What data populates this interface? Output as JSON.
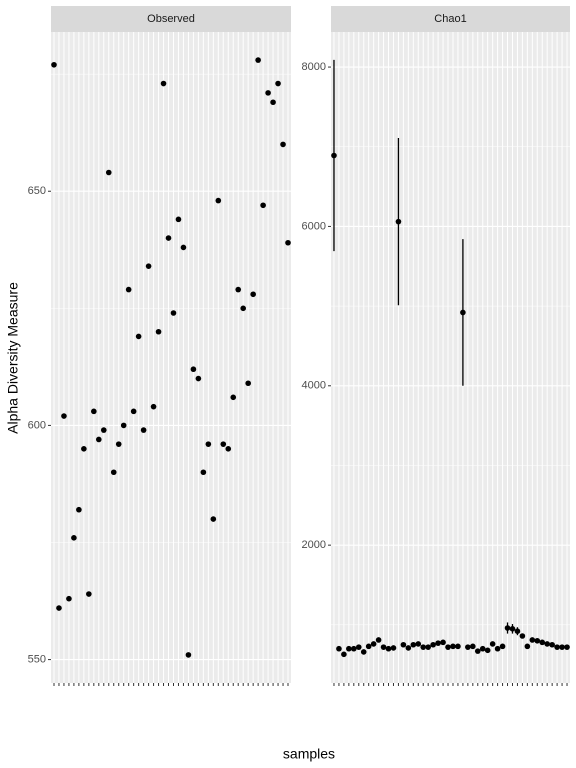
{
  "chart_data": [
    {
      "type": "scatter",
      "title": "Observed",
      "xlabel": "samples",
      "ylabel": "Alpha Diversity Measure",
      "categories": [
        null,
        null,
        null,
        null,
        null,
        null,
        null,
        null,
        null,
        null,
        null,
        null,
        null,
        null,
        null,
        null,
        null,
        null,
        null,
        null,
        null,
        null,
        null,
        null,
        null,
        null,
        null,
        null,
        null,
        null,
        null,
        null,
        null,
        null,
        null,
        null,
        null,
        null,
        null,
        null,
        null,
        null,
        null,
        null,
        null,
        null,
        null,
        null
      ],
      "values": [
        677,
        561,
        602,
        563,
        576,
        582,
        595,
        564,
        603,
        597,
        599,
        654,
        590,
        596,
        600,
        629,
        603,
        619,
        599,
        634,
        604,
        620,
        673,
        640,
        624,
        644,
        638,
        551,
        612,
        610,
        590,
        596,
        580,
        648,
        596,
        595,
        606,
        629,
        625,
        609,
        628,
        678,
        647,
        671,
        669,
        673,
        660,
        639
      ],
      "color": "#000000",
      "ylim": [
        545,
        684
      ],
      "yticks": [
        550,
        600,
        650
      ],
      "grid": true
    },
    {
      "type": "scatter",
      "title": "Chao1",
      "categories": [
        null,
        null,
        null,
        null,
        null,
        null,
        null,
        null,
        null,
        null,
        null,
        null,
        null,
        null,
        null,
        null,
        null,
        null,
        null,
        null,
        null,
        null,
        null,
        null,
        null,
        null,
        null,
        null,
        null,
        null,
        null,
        null,
        null,
        null,
        null,
        null,
        null,
        null,
        null,
        null,
        null,
        null,
        null,
        null,
        null,
        null,
        null,
        null
      ],
      "values": [
        6890,
        700,
        630,
        700,
        700,
        720,
        660,
        730,
        760,
        810,
        720,
        700,
        710,
        6060,
        750,
        710,
        750,
        760,
        720,
        720,
        750,
        770,
        780,
        720,
        730,
        730,
        4920,
        720,
        730,
        670,
        700,
        680,
        760,
        700,
        730,
        960,
        950,
        920,
        860,
        730,
        810,
        800,
        780,
        760,
        750,
        720,
        720,
        720
      ],
      "errors": [
        1200,
        null,
        null,
        null,
        null,
        null,
        null,
        null,
        null,
        null,
        null,
        null,
        null,
        1050,
        null,
        null,
        null,
        null,
        null,
        null,
        null,
        null,
        null,
        null,
        null,
        null,
        920,
        null,
        null,
        null,
        null,
        null,
        null,
        null,
        null,
        70,
        60,
        50,
        null,
        null,
        null,
        null,
        null,
        null,
        null,
        null,
        null,
        null
      ],
      "color": "#000000",
      "ylim": [
        270,
        8440
      ],
      "yticks": [
        2000,
        4000,
        6000,
        8000
      ],
      "grid": true
    }
  ]
}
